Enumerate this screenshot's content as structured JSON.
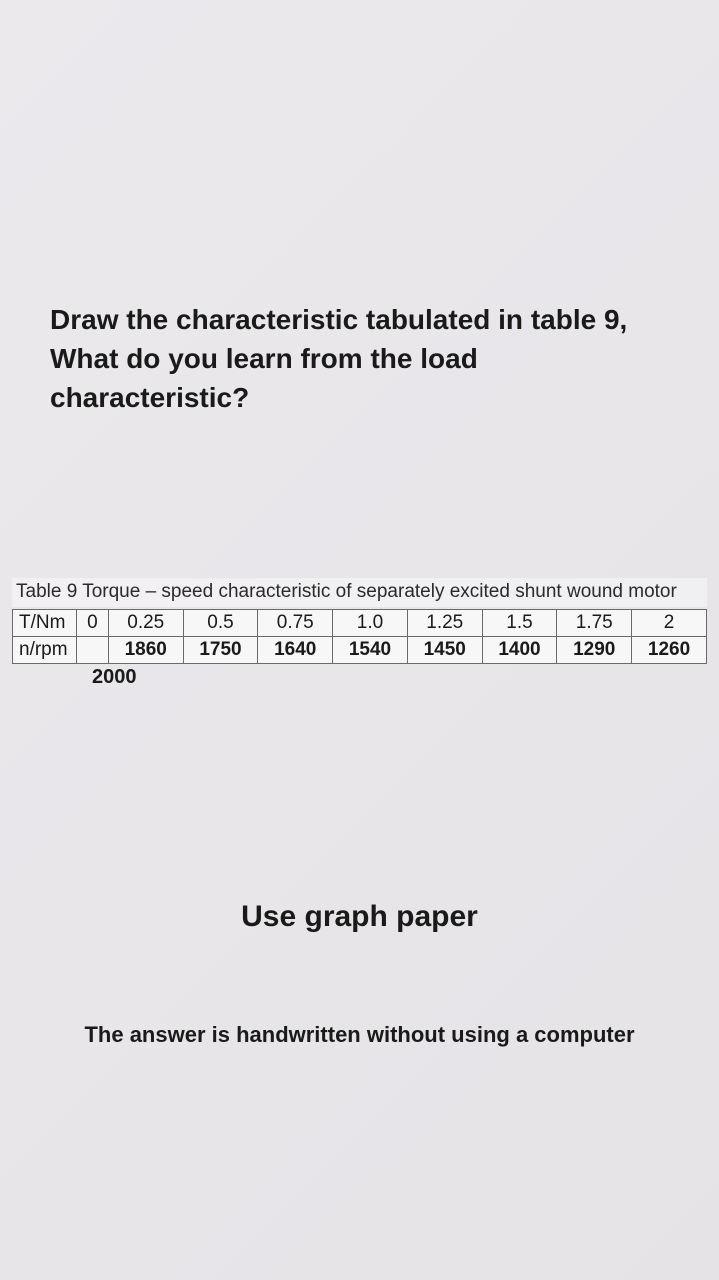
{
  "question": {
    "text": "Draw the characteristic tabulated in table 9, What do you learn from the load characteristic?"
  },
  "table": {
    "caption": "Table 9 Torque – speed characteristic of separately excited shunt wound motor",
    "row1_label": "T/Nm",
    "row2_label": "n/rpm",
    "columns": [
      "0",
      "0.25",
      "0.5",
      "0.75",
      "1.0",
      "1.25",
      "1.5",
      "1.75",
      "2"
    ],
    "values": [
      "",
      "1860",
      "1750",
      "1640",
      "1540",
      "1450",
      "1400",
      "1290",
      "1260"
    ],
    "overflow_value": "2000",
    "border_color": "#6a6a6a",
    "bg_color": "#f8f7f8",
    "font_size": 19
  },
  "instruction": {
    "text": "Use graph paper"
  },
  "note": {
    "text": "The answer is handwritten without using a computer"
  },
  "styling": {
    "page_bg": "#e8e6e9",
    "text_color": "#1a1a1a",
    "heading_fontsize": 28,
    "instruction_fontsize": 30,
    "note_fontsize": 22
  }
}
